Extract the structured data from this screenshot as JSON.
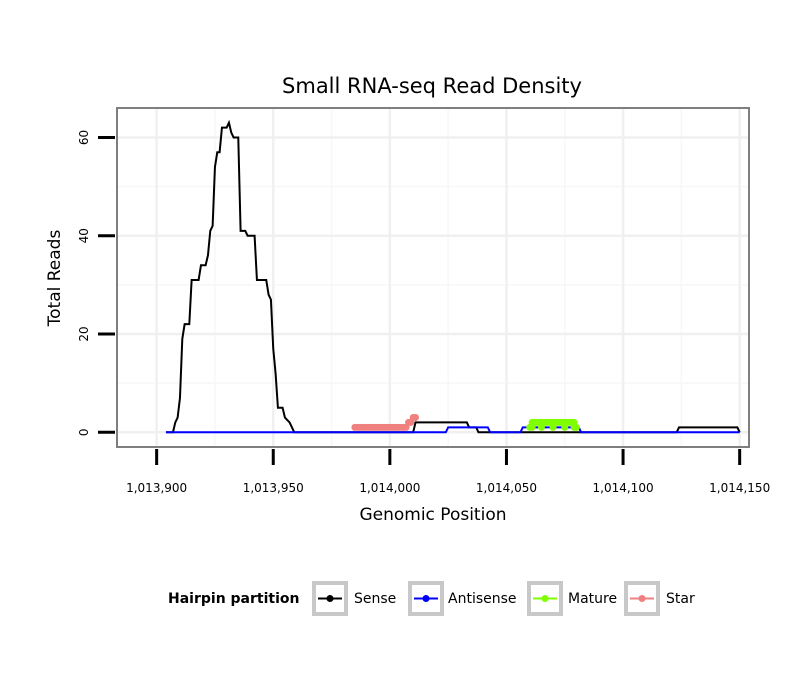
{
  "chart_data": {
    "type": "line",
    "title": "Small RNA-seq Read Density",
    "xlabel": "Genomic Position",
    "ylabel": "Total Reads",
    "xlim": [
      1013883,
      1014154
    ],
    "ylim": [
      -3,
      66
    ],
    "x_ticks": [
      1013900,
      1013950,
      1014000,
      1014050,
      1014100,
      1014150
    ],
    "x_tick_labels": [
      "1,013,900",
      "1,013,950",
      "1,014,000",
      "1,014,050",
      "1,014,100",
      "1,014,150"
    ],
    "y_ticks": [
      0,
      20,
      40,
      60
    ],
    "y_tick_labels": [
      "0",
      "20",
      "40",
      "60"
    ],
    "grid": true,
    "legend": {
      "title": "Hairpin partition",
      "position": "bottom",
      "entries": [
        "Sense",
        "Antisense",
        "Mature",
        "Star"
      ]
    },
    "series": [
      {
        "name": "Sense",
        "color": "#000000",
        "style": "line",
        "points": [
          [
            1013904,
            0
          ],
          [
            1013907,
            0
          ],
          [
            1013908,
            2
          ],
          [
            1013909,
            3
          ],
          [
            1013910,
            7
          ],
          [
            1013911,
            19
          ],
          [
            1013912,
            22
          ],
          [
            1013914,
            22
          ],
          [
            1013915,
            31
          ],
          [
            1013918,
            31
          ],
          [
            1013919,
            34
          ],
          [
            1013921,
            34
          ],
          [
            1013922,
            36
          ],
          [
            1013923,
            41
          ],
          [
            1013924,
            42
          ],
          [
            1013925,
            54
          ],
          [
            1013926,
            57
          ],
          [
            1013927,
            57
          ],
          [
            1013928,
            62
          ],
          [
            1013930,
            62
          ],
          [
            1013931,
            63
          ],
          [
            1013932,
            61
          ],
          [
            1013933,
            60
          ],
          [
            1013935,
            60
          ],
          [
            1013936,
            41
          ],
          [
            1013938,
            41
          ],
          [
            1013939,
            40
          ],
          [
            1013942,
            40
          ],
          [
            1013943,
            31
          ],
          [
            1013947,
            31
          ],
          [
            1013948,
            28
          ],
          [
            1013949,
            27
          ],
          [
            1013950,
            17
          ],
          [
            1013951,
            12
          ],
          [
            1013952,
            5
          ],
          [
            1013954,
            5
          ],
          [
            1013955,
            3
          ],
          [
            1013957,
            2
          ],
          [
            1013958,
            1
          ],
          [
            1013959,
            0
          ],
          [
            1014010,
            0
          ],
          [
            1014011,
            2
          ],
          [
            1014033,
            2
          ],
          [
            1014034,
            1
          ],
          [
            1014037,
            1
          ],
          [
            1014038,
            0
          ],
          [
            1014123,
            0
          ],
          [
            1014124,
            1
          ],
          [
            1014149,
            1
          ],
          [
            1014150,
            0
          ]
        ]
      },
      {
        "name": "Antisense",
        "color": "#0000ff",
        "style": "line",
        "points": [
          [
            1013904,
            0
          ],
          [
            1014024,
            0
          ],
          [
            1014025,
            1
          ],
          [
            1014042,
            1
          ],
          [
            1014043,
            0
          ],
          [
            1014056,
            0
          ],
          [
            1014057,
            1
          ],
          [
            1014081,
            1
          ],
          [
            1014082,
            0
          ],
          [
            1014150,
            0
          ]
        ]
      },
      {
        "name": "Mature",
        "color": "#7fff00",
        "style": "points",
        "points": [
          [
            1014060,
            1
          ],
          [
            1014061,
            2
          ],
          [
            1014062,
            2
          ],
          [
            1014063,
            2
          ],
          [
            1014064,
            2
          ],
          [
            1014065,
            2
          ],
          [
            1014066,
            2
          ],
          [
            1014067,
            2
          ],
          [
            1014068,
            2
          ],
          [
            1014069,
            2
          ],
          [
            1014070,
            2
          ],
          [
            1014071,
            2
          ],
          [
            1014072,
            2
          ],
          [
            1014073,
            2
          ],
          [
            1014074,
            2
          ],
          [
            1014075,
            2
          ],
          [
            1014076,
            2
          ],
          [
            1014077,
            2
          ],
          [
            1014078,
            2
          ],
          [
            1014079,
            2
          ],
          [
            1014080,
            1
          ],
          [
            1014061,
            1
          ],
          [
            1014065,
            1
          ],
          [
            1014070,
            1
          ],
          [
            1014075,
            1
          ],
          [
            1014079,
            1
          ]
        ]
      },
      {
        "name": "Star",
        "color": "#f08080",
        "style": "points",
        "points": [
          [
            1013985,
            1
          ],
          [
            1013986,
            1
          ],
          [
            1013987,
            1
          ],
          [
            1013988,
            1
          ],
          [
            1013989,
            1
          ],
          [
            1013990,
            1
          ],
          [
            1013991,
            1
          ],
          [
            1013992,
            1
          ],
          [
            1013993,
            1
          ],
          [
            1013994,
            1
          ],
          [
            1013995,
            1
          ],
          [
            1013996,
            1
          ],
          [
            1013997,
            1
          ],
          [
            1013998,
            1
          ],
          [
            1013999,
            1
          ],
          [
            1014000,
            1
          ],
          [
            1014001,
            1
          ],
          [
            1014002,
            1
          ],
          [
            1014003,
            1
          ],
          [
            1014004,
            1
          ],
          [
            1014005,
            1
          ],
          [
            1014006,
            1
          ],
          [
            1014007,
            1
          ],
          [
            1014008,
            2
          ],
          [
            1014009,
            2
          ],
          [
            1014010,
            3
          ],
          [
            1014011,
            3
          ]
        ]
      }
    ]
  }
}
